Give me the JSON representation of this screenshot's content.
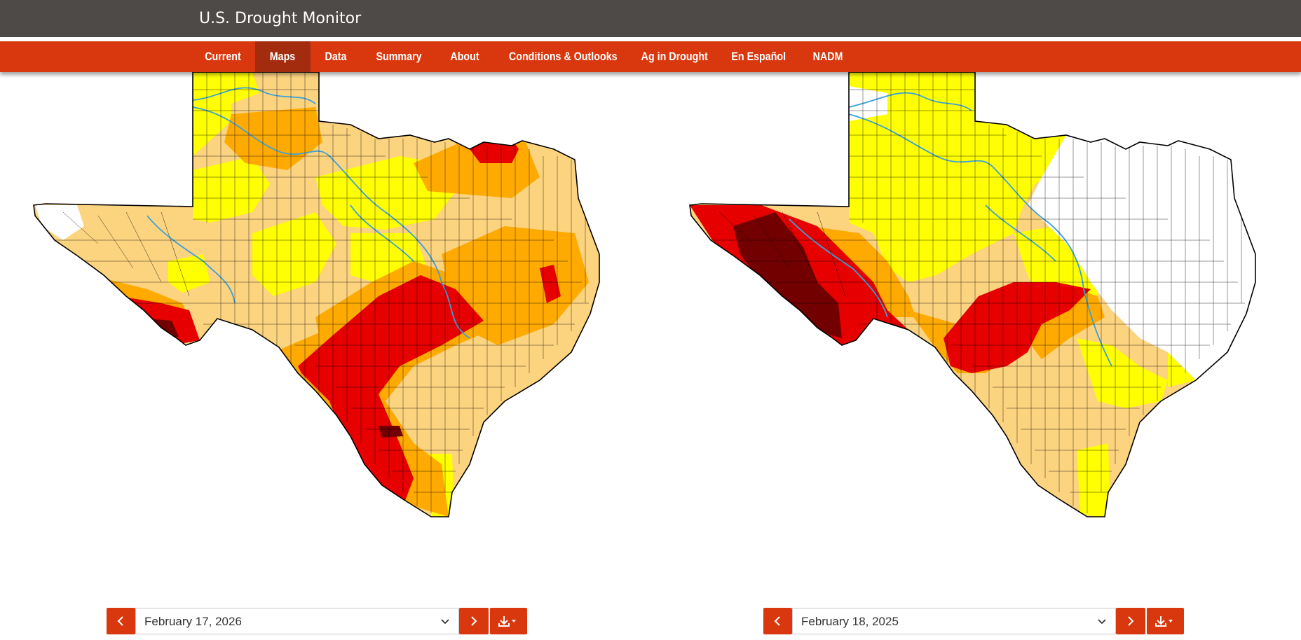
{
  "header": {
    "site_title": "U.S. Drought Monitor"
  },
  "nav": {
    "items": [
      {
        "label": "Current"
      },
      {
        "label": "Maps",
        "active": true
      },
      {
        "label": "Data"
      },
      {
        "label": "Summary"
      },
      {
        "label": "About"
      },
      {
        "label": "Conditions & Outlooks"
      },
      {
        "label": "Ag in Drought"
      },
      {
        "label": "En Español"
      },
      {
        "label": "NADM"
      }
    ]
  },
  "maps": [
    {
      "region": "Texas",
      "date": "February 17, 2026"
    },
    {
      "region": "Texas",
      "date": "February 18, 2025"
    }
  ],
  "legend_colors": {
    "none": "#ffffff",
    "D0": "#ffff00",
    "D1": "#fcd37f",
    "D2": "#ffaa00",
    "D3": "#e60000",
    "D4": "#730000",
    "rivers": "#3aa0dc"
  },
  "icons": {
    "prev": "chevron-left-icon",
    "next": "chevron-right-icon",
    "dropdown": "chevron-down-icon",
    "download": "download-icon"
  },
  "theme": {
    "header_bg": "#4e4a47",
    "nav_bg": "#d9380f",
    "nav_active_bg": "#a42c0e"
  }
}
